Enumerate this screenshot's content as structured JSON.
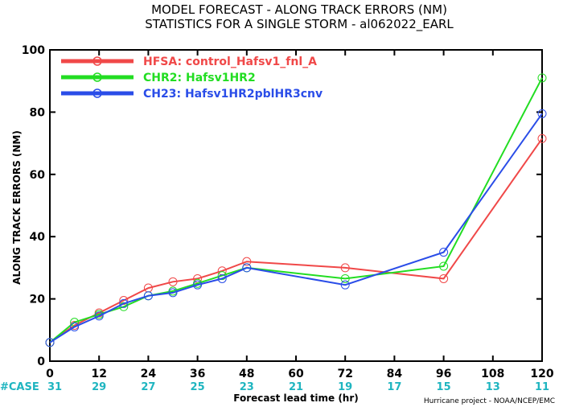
{
  "chart_data": {
    "type": "line",
    "title": "MODEL FORECAST - ALONG TRACK ERRORS (NM)",
    "subtitle": "STATISTICS FOR A SINGLE STORM - al062022_EARL",
    "xlabel": "Forecast lead time (hr)",
    "ylabel": "ALONG TRACK ERRORS (NM)",
    "xlim": [
      0,
      120
    ],
    "ylim": [
      0,
      100
    ],
    "xticks": [
      0,
      12,
      24,
      36,
      48,
      60,
      72,
      84,
      96,
      108,
      120
    ],
    "yticks": [
      0,
      20,
      40,
      60,
      80,
      100
    ],
    "grid": false,
    "legend_position": "top-left",
    "case_label": "#CASE",
    "case_counts": [
      31,
      29,
      27,
      25,
      23,
      21,
      19,
      17,
      15,
      13,
      11
    ],
    "credit": "Hurricane project - NOAA/NCEP/EMC",
    "series": [
      {
        "name": "HFSA: control_Hafsv1_fnl_A",
        "color": "#f04848",
        "x": [
          0,
          6,
          12,
          18,
          24,
          30,
          36,
          42,
          48,
          72,
          96,
          120
        ],
        "y": [
          6.0,
          11.5,
          15.5,
          19.5,
          23.5,
          25.5,
          26.5,
          29.0,
          32.0,
          30.0,
          26.5,
          71.5
        ]
      },
      {
        "name": "CHR2: Hafsv1HR2",
        "color": "#22dd22",
        "x": [
          0,
          6,
          12,
          18,
          24,
          30,
          36,
          42,
          48,
          72,
          96,
          120
        ],
        "y": [
          6.0,
          12.5,
          15.0,
          17.5,
          21.0,
          22.5,
          25.0,
          27.5,
          30.0,
          26.5,
          30.5,
          91.0
        ]
      },
      {
        "name": "CH23: Hafsv1HR2pblHR3cnv",
        "color": "#2a4de8",
        "x": [
          0,
          6,
          12,
          18,
          24,
          30,
          36,
          42,
          48,
          72,
          96,
          120
        ],
        "y": [
          6.0,
          11.0,
          14.5,
          18.5,
          21.0,
          22.0,
          24.5,
          26.5,
          30.0,
          24.5,
          35.0,
          79.5
        ]
      }
    ]
  }
}
